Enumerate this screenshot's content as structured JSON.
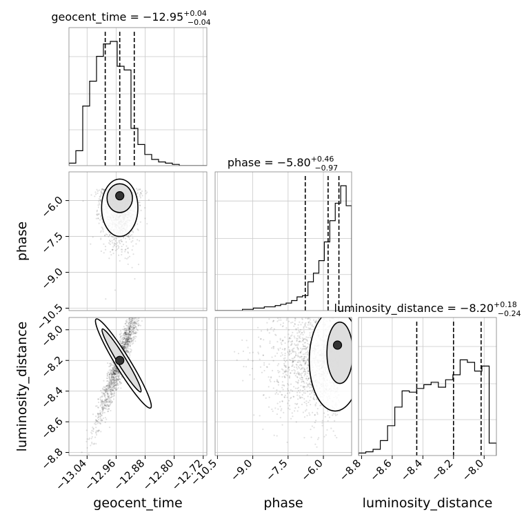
{
  "chart_data": {
    "type": "corner",
    "parameters": [
      "geocent_time",
      "phase",
      "luminosity_distance"
    ],
    "titles": [
      {
        "prefix": "geocent_time = ",
        "value": "−12.95",
        "plus": "+0.04",
        "minus": "−0.04"
      },
      {
        "prefix": "phase = ",
        "value": "−5.80",
        "plus": "+0.46",
        "minus": "−0.97"
      },
      {
        "prefix": "luminosity_distance = ",
        "value": "−8.20",
        "plus": "+0.18",
        "minus": "−0.24"
      }
    ],
    "axis_labels": {
      "x": [
        "geocent_time",
        "phase",
        "luminosity_distance"
      ],
      "y": [
        "phase",
        "luminosity_distance"
      ]
    },
    "ticks": {
      "geocent_time": {
        "values": [
          -13.04,
          -12.96,
          -12.88,
          -12.8,
          -12.72
        ],
        "labels": [
          "−13.04",
          "−12.96",
          "−12.88",
          "−12.80",
          "−12.72"
        ]
      },
      "phase": {
        "values": [
          -10.5,
          -9.0,
          -7.5,
          -6.0
        ],
        "labels": [
          "−10.5",
          "−9.0",
          "−7.5",
          "−6.0"
        ]
      },
      "luminosity_distance": {
        "values": [
          -8.8,
          -8.6,
          -8.4,
          -8.2,
          -8.0
        ],
        "labels": [
          "−8.8",
          "−8.6",
          "−8.4",
          "−8.2",
          "−8.0"
        ]
      }
    },
    "ranges": {
      "geocent_time": [
        -13.09,
        -12.71
      ],
      "phase": [
        -10.6,
        -4.8
      ],
      "luminosity_distance": [
        -8.82,
        -7.92
      ]
    },
    "quantiles": {
      "geocent_time": [
        -12.99,
        -12.95,
        -12.91
      ],
      "phase": [
        -6.77,
        -5.8,
        -5.34
      ],
      "luminosity_distance": [
        -8.44,
        -8.2,
        -8.02
      ]
    },
    "histograms": {
      "geocent_time": [
        0.02,
        0.12,
        0.48,
        0.68,
        0.88,
        0.98,
        1.0,
        0.8,
        0.77,
        0.3,
        0.17,
        0.09,
        0.05,
        0.03,
        0.02,
        0.01,
        0.0,
        0.0,
        0.0,
        0.0
      ],
      "phase": [
        0.0,
        0.0,
        0.0,
        0.0,
        0.0,
        0.01,
        0.01,
        0.02,
        0.02,
        0.03,
        0.03,
        0.04,
        0.05,
        0.06,
        0.08,
        0.11,
        0.12,
        0.23,
        0.3,
        0.4,
        0.55,
        0.72,
        0.86,
        1.0,
        0.84
      ],
      "luminosity_distance": [
        0.02,
        0.03,
        0.05,
        0.12,
        0.24,
        0.39,
        0.52,
        0.51,
        0.54,
        0.57,
        0.59,
        0.55,
        0.61,
        0.65,
        0.77,
        0.75,
        0.68,
        0.72,
        0.1
      ]
    },
    "density_modes": [
      {
        "x": "geocent_time",
        "y": "phase",
        "center": [
          -12.95,
          -5.8
        ]
      },
      {
        "x": "geocent_time",
        "y": "luminosity_distance",
        "center": [
          -12.95,
          -8.2
        ]
      },
      {
        "x": "phase",
        "y": "luminosity_distance",
        "center": [
          -5.4,
          -8.1
        ]
      }
    ],
    "grid": true
  }
}
